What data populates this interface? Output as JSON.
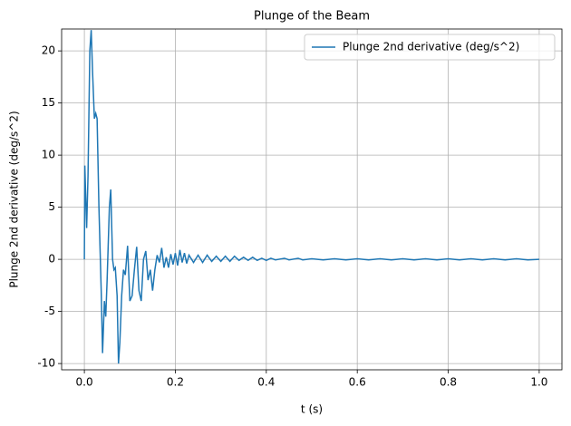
{
  "chart_data": {
    "type": "line",
    "title": "Plunge of the Beam",
    "x_label": "t (s)",
    "y_label": "Plunge 2nd derivative (deg/s^2)",
    "xlim": [
      -0.05,
      1.05
    ],
    "ylim": [
      -10.6,
      22.1
    ],
    "xticks": [
      {
        "value": 0,
        "label": "0.0"
      },
      0.2,
      0.4,
      0.6,
      0.8,
      {
        "value": 1,
        "label": "1.0"
      }
    ],
    "yticks": [
      -10,
      -5,
      0,
      5,
      10,
      15,
      20
    ],
    "grid": true,
    "legend": "upper right",
    "x": [
      0,
      0.001,
      0.005,
      0.008,
      0.012,
      0.015,
      0.018,
      0.022,
      0.025,
      0.028,
      0.032,
      0.037,
      0.04,
      0.044,
      0.047,
      0.05,
      0.055,
      0.058,
      0.062,
      0.065,
      0.068,
      0.072,
      0.075,
      0.078,
      0.082,
      0.086,
      0.09,
      0.095,
      0.1,
      0.105,
      0.11,
      0.115,
      0.12,
      0.125,
      0.13,
      0.135,
      0.14,
      0.145,
      0.15,
      0.155,
      0.16,
      0.165,
      0.17,
      0.175,
      0.18,
      0.185,
      0.19,
      0.195,
      0.2,
      0.205,
      0.21,
      0.215,
      0.22,
      0.225,
      0.23,
      0.24,
      0.25,
      0.26,
      0.27,
      0.28,
      0.29,
      0.3,
      0.31,
      0.32,
      0.33,
      0.34,
      0.35,
      0.36,
      0.37,
      0.38,
      0.39,
      0.4,
      0.41,
      0.42,
      0.44,
      0.45,
      0.47,
      0.48,
      0.5,
      0.525,
      0.55,
      0.575,
      0.6,
      0.625,
      0.65,
      0.675,
      0.7,
      0.725,
      0.75,
      0.775,
      0.8,
      0.825,
      0.85,
      0.875,
      0.9,
      0.925,
      0.95,
      0.975,
      1
    ],
    "series": [
      {
        "name": "Plunge 2nd derivative (deg/s^2)",
        "color": "#1f77b4",
        "values": [
          0,
          9,
          3,
          8,
          20,
          22,
          18,
          13.5,
          14,
          13.5,
          5,
          -3,
          -9,
          -4,
          -5.5,
          -2,
          5,
          6.7,
          0,
          -1,
          -0.8,
          -3.5,
          -10,
          -8,
          -3.5,
          -1,
          -1.5,
          1.3,
          -4,
          -3.5,
          -1,
          1.2,
          -3,
          -4,
          0,
          0.8,
          -2,
          -1,
          -3,
          -1,
          0.4,
          -0.3,
          1.1,
          -0.8,
          0.2,
          -0.8,
          0.5,
          -0.5,
          0.6,
          -0.6,
          0.9,
          -0.3,
          0.6,
          -0.4,
          0.4,
          -0.3,
          0.4,
          -0.3,
          0.4,
          -0.2,
          0.3,
          -0.2,
          0.3,
          -0.2,
          0.3,
          -0.1,
          0.2,
          -0.1,
          0.2,
          -0.1,
          0.1,
          -0.1,
          0.1,
          -0.05,
          0.1,
          -0.05,
          0.1,
          -0.05,
          0.05,
          -0.05,
          0.05,
          -0.05,
          0.05,
          -0.05,
          0.05,
          -0.05,
          0.05,
          -0.05,
          0.05,
          -0.05,
          0.05,
          -0.05,
          0.05,
          -0.05,
          0.05,
          -0.05,
          0.05,
          -0.05,
          0
        ]
      }
    ]
  }
}
